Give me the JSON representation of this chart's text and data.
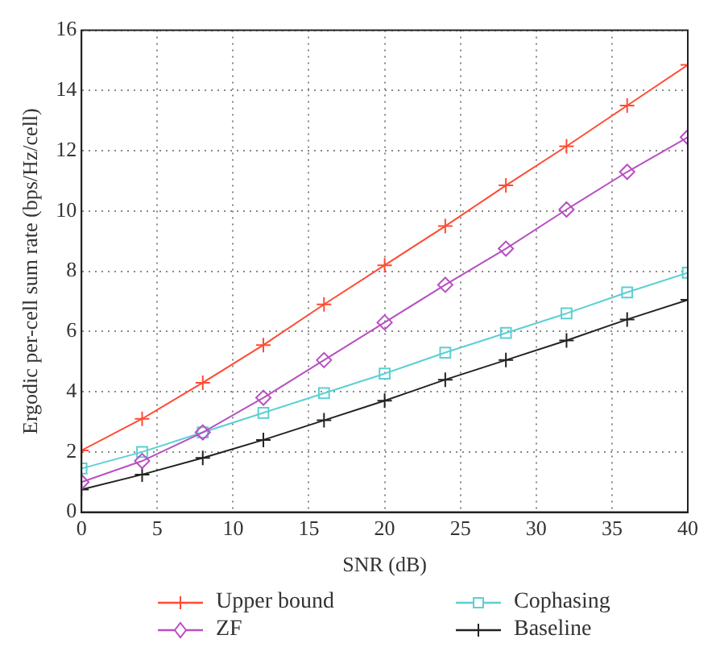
{
  "chart_data": {
    "type": "line",
    "xlabel": "SNR (dB)",
    "ylabel": "Ergodic per-cell sum rate (bps/Hz/cell)",
    "x": [
      0,
      4,
      8,
      12,
      16,
      20,
      24,
      28,
      32,
      36,
      40
    ],
    "xlim": [
      0,
      40
    ],
    "xticks": [
      0,
      5,
      10,
      15,
      20,
      25,
      30,
      35,
      40
    ],
    "ylim": [
      0,
      16
    ],
    "yticks": [
      0,
      2,
      4,
      6,
      8,
      10,
      12,
      14,
      16
    ],
    "grid": true,
    "legend": "bottom",
    "series": [
      {
        "name": "Upper bound",
        "color": "#ff4b33",
        "marker": "cross",
        "values": [
          2.05,
          3.1,
          4.3,
          5.55,
          6.9,
          8.2,
          9.5,
          10.85,
          12.15,
          13.5,
          14.85
        ]
      },
      {
        "name": "ZF",
        "color": "#b84fc2",
        "marker": "diamond",
        "values": [
          1.0,
          1.7,
          2.65,
          3.8,
          5.05,
          6.3,
          7.55,
          8.75,
          10.05,
          11.3,
          12.45
        ]
      },
      {
        "name": "Cophasing",
        "color": "#5ccfd3",
        "marker": "square",
        "values": [
          1.45,
          2.0,
          2.65,
          3.3,
          3.95,
          4.6,
          5.3,
          5.95,
          6.6,
          7.3,
          7.95
        ]
      },
      {
        "name": "Baseline",
        "color": "#222222",
        "marker": "cross",
        "values": [
          0.75,
          1.25,
          1.8,
          2.4,
          3.05,
          3.7,
          4.4,
          5.05,
          5.7,
          6.4,
          7.05
        ]
      }
    ]
  }
}
